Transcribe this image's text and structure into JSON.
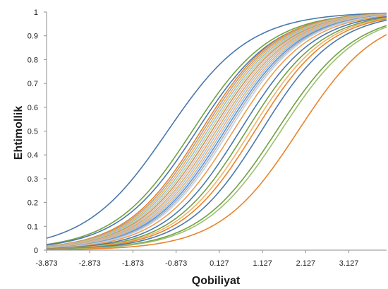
{
  "chart_data": {
    "type": "line",
    "title": "",
    "xlabel": "Qobiliyat",
    "ylabel": "Ehtimollik",
    "xlim": [
      -3.873,
      4.0
    ],
    "ylim": [
      0,
      1
    ],
    "x_tick_labels": [
      "-3.873",
      "-2.873",
      "-1.873",
      "-0.873",
      "0.127",
      "1.127",
      "2.127",
      "3.127"
    ],
    "x_ticks": [
      -3.873,
      -2.873,
      -1.873,
      -0.873,
      0.127,
      1.127,
      2.127,
      3.127
    ],
    "y_tick_labels": [
      "0",
      "0.1",
      "0.2",
      "0.3",
      "0.4",
      "0.5",
      "0.6",
      "0.7",
      "0.8",
      "0.9",
      "1"
    ],
    "y_ticks": [
      0,
      0.1,
      0.2,
      0.3,
      0.4,
      0.5,
      0.6,
      0.7,
      0.8,
      0.9,
      1
    ],
    "grid": false,
    "legend": "none",
    "model": "logistic item characteristic curves P(x) = 1 / (1 + exp(-a(x - b)))",
    "series": [
      {
        "a": 1.05,
        "b": -1.07,
        "color": "#4a78ae"
      },
      {
        "a": 1.1,
        "b": -0.5,
        "color": "#70a142"
      },
      {
        "a": 1.1,
        "b": -0.4,
        "color": "#4a78ae"
      },
      {
        "a": 1.15,
        "b": -0.3,
        "color": "#e8842c"
      },
      {
        "a": 1.15,
        "b": -0.25,
        "color": "#a5a5a5"
      },
      {
        "a": 1.15,
        "b": -0.2,
        "color": "#f2b347"
      },
      {
        "a": 1.15,
        "b": -0.15,
        "color": "#9dbbe0"
      },
      {
        "a": 1.15,
        "b": -0.1,
        "color": "#b7d48c"
      },
      {
        "a": 1.15,
        "b": -0.05,
        "color": "#d98b64"
      },
      {
        "a": 1.15,
        "b": 0.0,
        "color": "#c6c6c6"
      },
      {
        "a": 1.15,
        "b": 0.05,
        "color": "#e4a95a"
      },
      {
        "a": 1.15,
        "b": 0.1,
        "color": "#a9c3e3"
      },
      {
        "a": 1.15,
        "b": 0.15,
        "color": "#f0b266"
      },
      {
        "a": 1.15,
        "b": 0.2,
        "color": "#9fc4e6"
      },
      {
        "a": 1.15,
        "b": 0.25,
        "color": "#5e8fcf"
      },
      {
        "a": 1.15,
        "b": 0.3,
        "color": "#b1b1b1"
      },
      {
        "a": 1.15,
        "b": 0.35,
        "color": "#bcd2ec"
      },
      {
        "a": 1.15,
        "b": 0.45,
        "color": "#ee9d4e"
      },
      {
        "a": 1.15,
        "b": 0.6,
        "color": "#4a78ae"
      },
      {
        "a": 1.15,
        "b": 0.75,
        "color": "#70a142"
      },
      {
        "a": 1.15,
        "b": 0.85,
        "color": "#f0b36a"
      },
      {
        "a": 1.15,
        "b": 0.95,
        "color": "#e8842c"
      },
      {
        "a": 1.15,
        "b": 1.1,
        "color": "#4a78ae"
      },
      {
        "a": 1.1,
        "b": 1.45,
        "color": "#70a142"
      },
      {
        "a": 1.1,
        "b": 1.55,
        "color": "#9cbf70"
      },
      {
        "a": 1.1,
        "b": 1.95,
        "color": "#e8842c"
      }
    ]
  }
}
